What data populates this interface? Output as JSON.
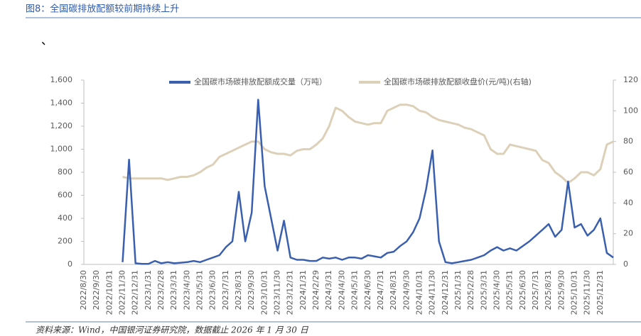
{
  "header": {
    "title": "图8：全国碳排放配额较前期持续上升",
    "mark": "、"
  },
  "chart_data": {
    "type": "line",
    "categories": [
      "2022/8/30",
      null,
      "2022/9/30",
      null,
      "2022/10/31",
      null,
      "2022/11/30",
      null,
      "2022/12/31",
      null,
      "2023/1/31",
      null,
      "2023/2/28",
      null,
      "2023/3/31",
      null,
      "2023/4/30",
      null,
      "2023/5/31",
      null,
      "2023/6/30",
      null,
      "2023/7/31",
      null,
      "2023/8/31",
      null,
      "2023/9/30",
      null,
      "2023/10/31",
      null,
      "2023/11/30",
      null,
      "2023/12/31",
      null,
      "2024/1/31",
      null,
      "2024/2/29",
      null,
      "2024/3/31",
      null,
      "2024/4/30",
      null,
      "2024/5/31",
      null,
      "2024/6/30",
      null,
      "2024/7/31",
      null,
      "2024/8/31",
      null,
      "2024/9/30",
      null,
      "2024/10/31",
      null,
      "2024/11/30",
      null,
      "2024/12/31",
      null,
      "2025/1/31",
      null,
      "2025/2/28",
      null,
      "2025/3/31",
      null,
      "2025/4/30",
      null,
      "2025/5/31",
      null,
      "2025/6/30",
      null,
      "2025/7/31",
      null,
      "2025/8/31",
      null,
      "2025/9/30",
      null,
      "2025/10/31",
      null,
      "2025/11/30",
      null,
      "2025/12/31",
      null,
      null
    ],
    "series": [
      {
        "name": "全国碳市场碳排放配额成交量（万吨）",
        "color": "#3a5fae",
        "values": [
          null,
          null,
          null,
          null,
          null,
          null,
          20,
          910,
          10,
          5,
          5,
          30,
          10,
          20,
          10,
          15,
          20,
          30,
          20,
          40,
          60,
          80,
          150,
          200,
          630,
          200,
          450,
          1430,
          680,
          400,
          120,
          380,
          60,
          40,
          40,
          30,
          30,
          60,
          50,
          60,
          40,
          60,
          60,
          50,
          80,
          70,
          60,
          100,
          110,
          160,
          200,
          280,
          400,
          650,
          990,
          200,
          20,
          10,
          20,
          30,
          40,
          60,
          80,
          120,
          150,
          120,
          140,
          120,
          160,
          200,
          250,
          300,
          350,
          240,
          300,
          720,
          320,
          350,
          250,
          300,
          400,
          100,
          60
        ]
      },
      {
        "name": "全国碳市场碳排放配额收盘价(元/吨)(右轴)",
        "color": "#ddd0b8",
        "axis": "y2",
        "values": [
          null,
          null,
          null,
          null,
          null,
          null,
          57,
          56,
          56,
          56,
          56,
          56,
          56,
          55,
          56,
          57,
          57,
          58,
          60,
          63,
          65,
          70,
          72,
          74,
          76,
          78,
          80,
          80,
          75,
          73,
          72,
          72,
          71,
          74,
          75,
          75,
          78,
          82,
          90,
          102,
          100,
          96,
          93,
          92,
          91,
          92,
          92,
          100,
          102,
          104,
          104,
          103,
          100,
          99,
          96,
          94,
          93,
          92,
          91,
          89,
          88,
          86,
          84,
          75,
          72,
          72,
          78,
          77,
          76,
          75,
          74,
          68,
          66,
          60,
          57,
          53,
          56,
          60,
          60,
          58,
          62,
          78,
          80
        ]
      }
    ],
    "ylim": [
      0,
      1600
    ],
    "yticks": [
      0,
      {
        "value": 200,
        "label": "200"
      },
      400,
      600,
      800,
      {
        "value": 1000,
        "label": "1,000"
      },
      {
        "value": 1200,
        "label": "1,200"
      },
      {
        "value": 1400,
        "label": "1,400"
      },
      {
        "value": 1600,
        "label": "1,600"
      }
    ],
    "y2lim": [
      0,
      120
    ],
    "y2ticks": [
      0,
      20,
      40,
      60,
      80,
      100,
      120
    ],
    "legend": "top"
  },
  "footer": {
    "source": "资料来源：Wind，中国银河证券研究院，数据截止 2026 年 1 月 30 日"
  }
}
